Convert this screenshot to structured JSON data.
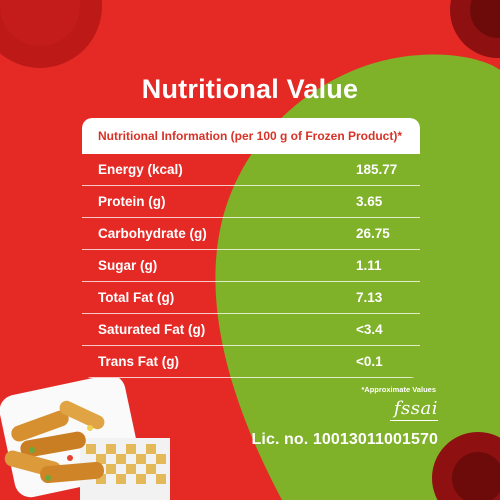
{
  "title": "Nutritional Value",
  "table": {
    "header": "Nutritional Information (per 100 g of Frozen Product)*",
    "rows": [
      {
        "label": "Energy (kcal)",
        "value": "185.77"
      },
      {
        "label": "Protein (g)",
        "value": "3.65"
      },
      {
        "label": "Carbohydrate (g)",
        "value": "26.75"
      },
      {
        "label": "Sugar (g)",
        "value": "1.11"
      },
      {
        "label": "Total Fat (g)",
        "value": "7.13"
      },
      {
        "label": "Saturated Fat (g)",
        "value": "<3.4"
      },
      {
        "label": "Trans Fat (g)",
        "value": "<0.1"
      }
    ]
  },
  "footnote": "*Approximate Values",
  "fssai_logo": "fssai",
  "license": "Lic. no. 10013011001570",
  "colors": {
    "red": "#e52a26",
    "green": "#7fb129",
    "header_text": "#d83227"
  }
}
